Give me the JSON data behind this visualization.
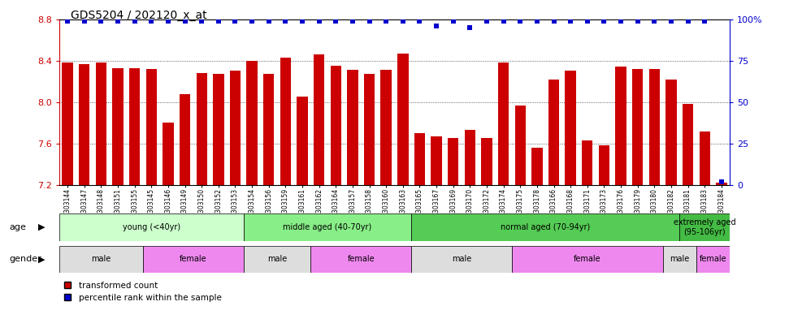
{
  "title": "GDS5204 / 202120_x_at",
  "samples": [
    "GSM1303144",
    "GSM1303147",
    "GSM1303148",
    "GSM1303151",
    "GSM1303155",
    "GSM1303145",
    "GSM1303146",
    "GSM1303149",
    "GSM1303150",
    "GSM1303152",
    "GSM1303153",
    "GSM1303154",
    "GSM1303156",
    "GSM1303159",
    "GSM1303161",
    "GSM1303162",
    "GSM1303164",
    "GSM1303157",
    "GSM1303158",
    "GSM1303160",
    "GSM1303163",
    "GSM1303165",
    "GSM1303167",
    "GSM1303169",
    "GSM1303170",
    "GSM1303172",
    "GSM1303174",
    "GSM1303175",
    "GSM1303178",
    "GSM1303166",
    "GSM1303168",
    "GSM1303171",
    "GSM1303173",
    "GSM1303176",
    "GSM1303179",
    "GSM1303180",
    "GSM1303182",
    "GSM1303181",
    "GSM1303183",
    "GSM1303184"
  ],
  "bar_values": [
    8.38,
    8.37,
    8.38,
    8.33,
    8.33,
    8.32,
    7.8,
    8.08,
    8.28,
    8.27,
    8.3,
    8.4,
    8.27,
    8.43,
    8.05,
    8.46,
    8.35,
    8.31,
    8.27,
    8.31,
    8.47,
    7.7,
    7.67,
    7.65,
    7.73,
    7.65,
    8.38,
    7.97,
    7.56,
    8.22,
    8.3,
    7.63,
    7.58,
    8.34,
    8.32,
    8.32,
    8.22,
    7.98,
    7.72,
    7.22
  ],
  "percentile_values": [
    99,
    99,
    99,
    99,
    99,
    99,
    99,
    99,
    99,
    99,
    99,
    99,
    99,
    99,
    99,
    99,
    99,
    99,
    99,
    99,
    99,
    99,
    96,
    99,
    95,
    99,
    99,
    99,
    99,
    99,
    99,
    99,
    99,
    99,
    99,
    99,
    99,
    99,
    99,
    2
  ],
  "ylim_left": [
    7.2,
    8.8
  ],
  "yticks_left": [
    7.2,
    7.6,
    8.0,
    8.4,
    8.8
  ],
  "ylim_right": [
    0,
    100
  ],
  "yticks_right": [
    0,
    25,
    50,
    75,
    100
  ],
  "bar_color": "#cc0000",
  "dot_color": "#0000cc",
  "bar_width": 0.65,
  "age_groups": [
    {
      "label": "young (<40yr)",
      "start": 0,
      "end": 11,
      "color": "#ccffcc"
    },
    {
      "label": "middle aged (40-70yr)",
      "start": 11,
      "end": 21,
      "color": "#88ee88"
    },
    {
      "label": "normal aged (70-94yr)",
      "start": 21,
      "end": 37,
      "color": "#55cc55"
    },
    {
      "label": "extremely aged\n(95-106yr)",
      "start": 37,
      "end": 40,
      "color": "#44bb44"
    }
  ],
  "gender_groups": [
    {
      "label": "male",
      "start": 0,
      "end": 5,
      "color": "#dddddd"
    },
    {
      "label": "female",
      "start": 5,
      "end": 11,
      "color": "#ee88ee"
    },
    {
      "label": "male",
      "start": 11,
      "end": 15,
      "color": "#dddddd"
    },
    {
      "label": "female",
      "start": 15,
      "end": 21,
      "color": "#ee88ee"
    },
    {
      "label": "male",
      "start": 21,
      "end": 27,
      "color": "#dddddd"
    },
    {
      "label": "female",
      "start": 27,
      "end": 36,
      "color": "#ee88ee"
    },
    {
      "label": "male",
      "start": 36,
      "end": 38,
      "color": "#dddddd"
    },
    {
      "label": "female",
      "start": 38,
      "end": 40,
      "color": "#ee88ee"
    }
  ],
  "legend_items": [
    {
      "label": "transformed count",
      "color": "#cc0000"
    },
    {
      "label": "percentile rank within the sample",
      "color": "#0000cc"
    }
  ]
}
